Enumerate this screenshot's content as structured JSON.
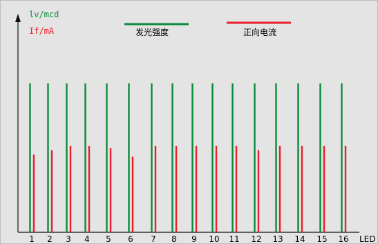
{
  "chart_data": {
    "type": "bar",
    "title": "",
    "xlabel": "LED",
    "ylabel": "",
    "y_axis_labels": [
      "lv/mcd",
      "If/mA"
    ],
    "categories": [
      "1",
      "2",
      "3",
      "4",
      "5",
      "6",
      "7",
      "8",
      "9",
      "10",
      "11",
      "12",
      "13",
      "14",
      "15",
      "16"
    ],
    "ylim": [
      0,
      1
    ],
    "grid": false,
    "legend_position": "top",
    "series": [
      {
        "name": "发光强度",
        "color": "#0a8a3a",
        "values": [
          0.69,
          0.69,
          0.69,
          0.69,
          0.69,
          0.69,
          0.69,
          0.69,
          0.69,
          0.69,
          0.69,
          0.69,
          0.69,
          0.69,
          0.69,
          0.69
        ]
      },
      {
        "name": "正向电流",
        "color": "#e8202a",
        "values": [
          0.36,
          0.38,
          0.4,
          0.4,
          0.39,
          0.35,
          0.4,
          0.4,
          0.4,
          0.4,
          0.4,
          0.38,
          0.4,
          0.4,
          0.4,
          0.4
        ]
      }
    ]
  }
}
